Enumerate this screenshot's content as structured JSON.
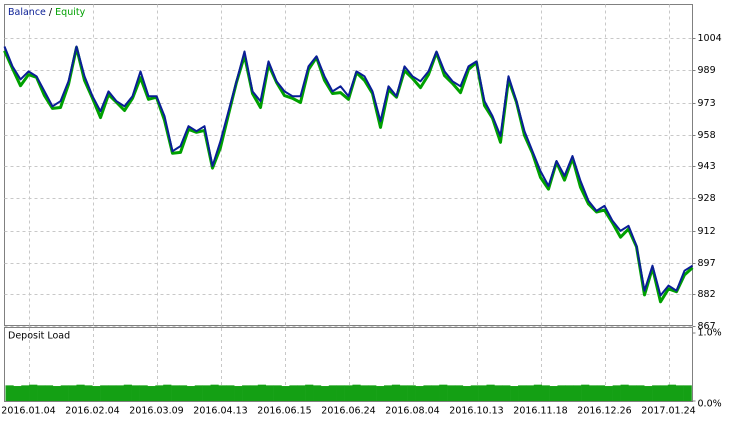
{
  "chart_data": [
    {
      "type": "line",
      "legend_separator": "/",
      "x": [
        0,
        1,
        2,
        3,
        4,
        5,
        6,
        7,
        8,
        9,
        10,
        11,
        12,
        13,
        14,
        15,
        16,
        17,
        18,
        19,
        20,
        21,
        22,
        23,
        24,
        25,
        26,
        27,
        28,
        29,
        30,
        31,
        32,
        33,
        34,
        35,
        36,
        37,
        38,
        39,
        40,
        41,
        42,
        43,
        44,
        45,
        46,
        47,
        48,
        49,
        50,
        51,
        52,
        53,
        54,
        55,
        56,
        57,
        58,
        59,
        60,
        61,
        62,
        63,
        64,
        65,
        66,
        67,
        68,
        69,
        70,
        71,
        72,
        73,
        74,
        75,
        76,
        77,
        78,
        79,
        80,
        81,
        82,
        83,
        84,
        85,
        86
      ],
      "xlim": [
        0,
        86
      ],
      "xticks": [
        {
          "value": 3,
          "label": "2016.01.04"
        },
        {
          "value": 11,
          "label": "2016.02.04"
        },
        {
          "value": 19,
          "label": "2016.03.09"
        },
        {
          "value": 27,
          "label": "2016.04.13"
        },
        {
          "value": 35,
          "label": "2016.06.15"
        },
        {
          "value": 43,
          "label": "2016.06.24"
        },
        {
          "value": 51,
          "label": "2016.08.04"
        },
        {
          "value": 59,
          "label": "2016.10.13"
        },
        {
          "value": 67,
          "label": "2016.11.18"
        },
        {
          "value": 75,
          "label": "2016.12.26"
        },
        {
          "value": 83,
          "label": "2017.01.24"
        }
      ],
      "ylim": [
        867,
        1020
      ],
      "yticks": [
        1004,
        989,
        973,
        958,
        943,
        928,
        912,
        897,
        882,
        867
      ],
      "grid": true,
      "series": [
        {
          "name": "Equity",
          "color": "#00a000",
          "values": [
            998,
            989.5,
            981.3,
            986.6,
            985.3,
            976.6,
            970.5,
            970.9,
            981.9,
            999.5,
            983.8,
            975.3,
            966.1,
            977.1,
            973.4,
            969.5,
            975.3,
            985.1,
            974.8,
            975.8,
            964.8,
            949.1,
            949.5,
            960.5,
            959.1,
            960,
            942,
            951.9,
            967.6,
            982.9,
            995.6,
            977.6,
            970.9,
            991.4,
            982.9,
            976.6,
            975.3,
            973.3,
            989,
            994.8,
            983.8,
            977.6,
            978,
            974.8,
            987.6,
            983.8,
            977.6,
            961.4,
            979.5,
            975.8,
            988.5,
            984.8,
            980.4,
            986.6,
            997.1,
            986.1,
            982.4,
            978,
            989,
            992.4,
            971.9,
            965.8,
            954.3,
            984.3,
            973.4,
            957.6,
            949.1,
            937.6,
            932,
            944.9,
            936.3,
            946.8,
            932.9,
            924.9,
            921.1,
            922,
            915.9,
            909.1,
            913,
            904.5,
            881.6,
            894.5,
            878.3,
            884.5,
            883.1,
            891.1,
            894.5
          ]
        },
        {
          "name": "Balance",
          "color": "#0a1e96",
          "values": [
            1000,
            990.5,
            984.3,
            988.1,
            985.8,
            978.6,
            971.5,
            973.9,
            983.4,
            1000,
            985.8,
            976.3,
            969.1,
            978.6,
            973.9,
            971.5,
            976.3,
            988.1,
            976.3,
            976.3,
            966.8,
            950.1,
            952.5,
            962,
            959.6,
            962,
            943,
            954.9,
            969.1,
            983.4,
            997.6,
            978.6,
            973.9,
            992.9,
            983.4,
            978.6,
            976.3,
            976.3,
            990.5,
            995.3,
            985.8,
            978.6,
            981,
            976.3,
            988.1,
            985.8,
            978.6,
            964.4,
            981,
            976.3,
            990.5,
            985.8,
            983.4,
            988.1,
            997.6,
            988.1,
            983.4,
            981,
            990.5,
            992.9,
            973.9,
            966.8,
            957.3,
            985.8,
            973.9,
            959.6,
            950.1,
            940.6,
            933.5,
            945.4,
            938.3,
            947.8,
            935.9,
            926.4,
            921.6,
            924,
            916.9,
            912.1,
            914.5,
            905,
            883.6,
            895.5,
            881.3,
            886,
            883.6,
            893.1,
            895.5
          ]
        }
      ]
    },
    {
      "type": "bar",
      "title": "Deposit Load",
      "color": "#14a014",
      "ylim": [
        0,
        1
      ],
      "yticks": [
        {
          "value": 1,
          "label": "1.0%"
        },
        {
          "value": 0,
          "label": "0.0%"
        }
      ],
      "values": [
        0.23,
        0.22,
        0.23,
        0.24,
        0.23,
        0.23,
        0.22,
        0.23,
        0.23,
        0.24,
        0.23,
        0.22,
        0.23,
        0.23,
        0.23,
        0.24,
        0.23,
        0.23,
        0.22,
        0.23,
        0.24,
        0.23,
        0.23,
        0.22,
        0.23,
        0.23,
        0.24,
        0.23,
        0.23,
        0.22,
        0.23,
        0.23,
        0.24,
        0.23,
        0.23,
        0.22,
        0.23,
        0.23,
        0.24,
        0.23,
        0.22,
        0.23,
        0.23,
        0.23,
        0.24,
        0.23,
        0.23,
        0.22,
        0.23,
        0.24,
        0.23,
        0.23,
        0.22,
        0.23,
        0.23,
        0.24,
        0.23,
        0.23,
        0.22,
        0.23,
        0.23,
        0.24,
        0.23,
        0.23,
        0.22,
        0.23,
        0.23,
        0.24,
        0.23,
        0.22,
        0.23,
        0.23,
        0.23,
        0.24,
        0.23,
        0.23,
        0.22,
        0.23,
        0.24,
        0.23,
        0.23,
        0.22,
        0.23,
        0.23,
        0.24,
        0.23,
        0.23
      ]
    }
  ]
}
